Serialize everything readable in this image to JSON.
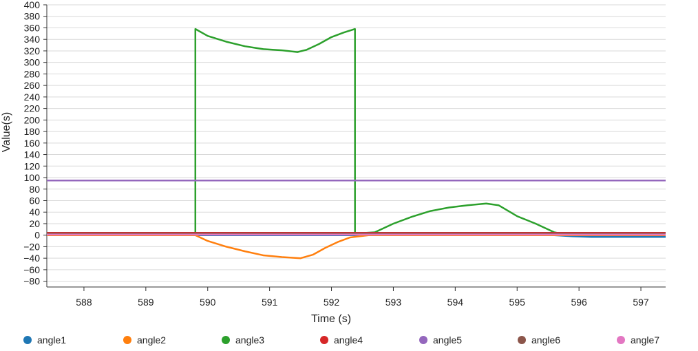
{
  "chart_data": {
    "type": "line",
    "xlabel": "Time (s)",
    "ylabel": "Value(s)",
    "xlim": [
      587.4,
      597.4
    ],
    "ylim": [
      -90,
      400
    ],
    "xticks": [
      588,
      589,
      590,
      591,
      592,
      593,
      594,
      595,
      596,
      597
    ],
    "yticks": [
      400,
      380,
      360,
      340,
      320,
      300,
      280,
      260,
      240,
      220,
      200,
      180,
      160,
      140,
      120,
      100,
      80,
      60,
      40,
      20,
      0,
      -20,
      -40,
      -60,
      -80
    ],
    "grid": true,
    "legend_position": "bottom",
    "series": [
      {
        "name": "angle1",
        "color": "#1f77b4",
        "points": [
          [
            587.4,
            0
          ],
          [
            595.6,
            0
          ],
          [
            595.9,
            -2
          ],
          [
            596.2,
            -3
          ],
          [
            597.4,
            -3
          ]
        ]
      },
      {
        "name": "angle2",
        "color": "#ff7f0e",
        "points": [
          [
            587.4,
            0
          ],
          [
            589.8,
            0
          ],
          [
            590.0,
            -10
          ],
          [
            590.3,
            -20
          ],
          [
            590.6,
            -28
          ],
          [
            590.9,
            -35
          ],
          [
            591.2,
            -38
          ],
          [
            591.5,
            -40
          ],
          [
            591.7,
            -34
          ],
          [
            591.9,
            -22
          ],
          [
            592.1,
            -12
          ],
          [
            592.3,
            -4
          ],
          [
            592.6,
            0
          ],
          [
            597.4,
            0
          ]
        ]
      },
      {
        "name": "angle3",
        "color": "#2ca02c",
        "points": [
          [
            587.4,
            3
          ],
          [
            589.8,
            3
          ],
          [
            589.8,
            358
          ],
          [
            590.0,
            346
          ],
          [
            590.3,
            336
          ],
          [
            590.6,
            328
          ],
          [
            590.9,
            323
          ],
          [
            591.2,
            321
          ],
          [
            591.45,
            318
          ],
          [
            591.6,
            322
          ],
          [
            591.8,
            332
          ],
          [
            592.0,
            344
          ],
          [
            592.2,
            352
          ],
          [
            592.38,
            358
          ],
          [
            592.38,
            3
          ],
          [
            592.7,
            5
          ],
          [
            593.0,
            20
          ],
          [
            593.3,
            32
          ],
          [
            593.6,
            42
          ],
          [
            593.9,
            48
          ],
          [
            594.2,
            52
          ],
          [
            594.5,
            55
          ],
          [
            594.7,
            52
          ],
          [
            595.0,
            33
          ],
          [
            595.3,
            20
          ],
          [
            595.6,
            5
          ],
          [
            595.7,
            3
          ],
          [
            597.4,
            3
          ]
        ]
      },
      {
        "name": "angle4",
        "color": "#d62728",
        "points": [
          [
            587.4,
            4
          ],
          [
            597.4,
            4
          ]
        ]
      },
      {
        "name": "angle5",
        "color": "#9467bd",
        "points": [
          [
            587.4,
            95
          ],
          [
            597.4,
            95
          ]
        ]
      },
      {
        "name": "angle6",
        "color": "#8c564b",
        "points": [
          [
            587.4,
            3
          ],
          [
            597.4,
            3
          ]
        ]
      },
      {
        "name": "angle7",
        "color": "#e377c2",
        "points": [
          [
            587.4,
            1
          ],
          [
            597.4,
            1
          ]
        ]
      }
    ]
  }
}
